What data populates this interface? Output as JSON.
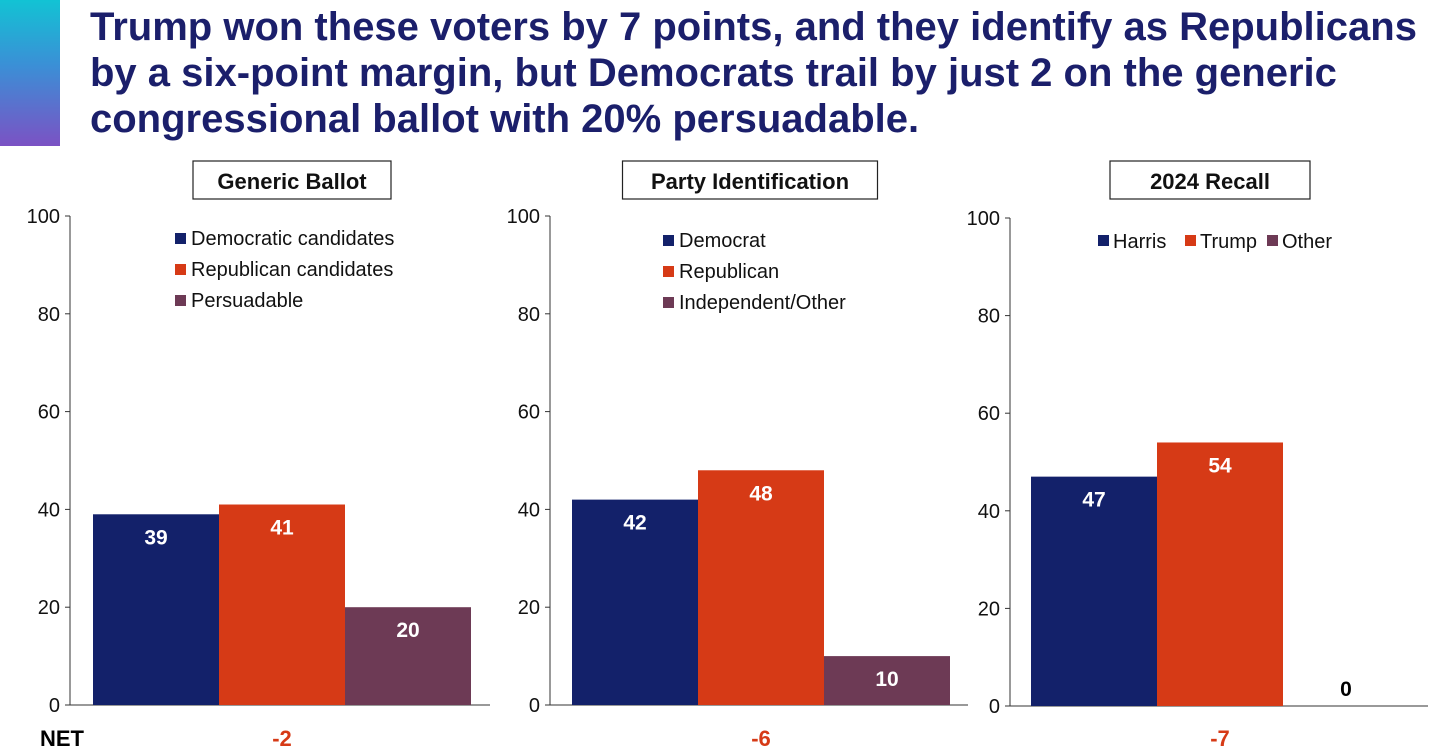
{
  "headline": "Trump won these voters by 7 points, and they identify as Republicans by a six-point margin, but Democrats trail by just 2 on the generic congressional ballot with 20% persuadable.",
  "net_label": "NET",
  "colors": {
    "navy": "#13216a",
    "red": "#d63a16",
    "plum": "#6d3a55",
    "net_red": "#d63a16",
    "title_blue": "#1b1f6b"
  },
  "chart_data": [
    {
      "type": "bar",
      "title": "Generic Ballot",
      "categories": [
        "Democratic candidates",
        "Republican candidates",
        "Persuadable"
      ],
      "values": [
        39,
        41,
        20
      ],
      "legend": [
        "Democratic candidates",
        "Republican candidates",
        "Persuadable"
      ],
      "legend_layout": "vertical",
      "ylim": [
        0,
        100
      ],
      "yticks": [
        0,
        20,
        40,
        60,
        80,
        100
      ],
      "net": "-2"
    },
    {
      "type": "bar",
      "title": "Party Identification",
      "categories": [
        "Democrat",
        "Republican",
        "Independent/Other"
      ],
      "values": [
        42,
        48,
        10
      ],
      "legend": [
        "Democrat",
        "Republican",
        "Independent/Other"
      ],
      "legend_layout": "vertical",
      "ylim": [
        0,
        100
      ],
      "yticks": [
        0,
        20,
        40,
        60,
        80,
        100
      ],
      "net": "-6"
    },
    {
      "type": "bar",
      "title": "2024 Recall",
      "categories": [
        "Harris",
        "Trump",
        "Other"
      ],
      "values": [
        47,
        54,
        0
      ],
      "legend": [
        "Harris",
        "Trump",
        "Other"
      ],
      "legend_layout": "horizontal",
      "ylim": [
        0,
        100
      ],
      "yticks": [
        0,
        20,
        40,
        60,
        80,
        100
      ],
      "net": "-7"
    }
  ]
}
